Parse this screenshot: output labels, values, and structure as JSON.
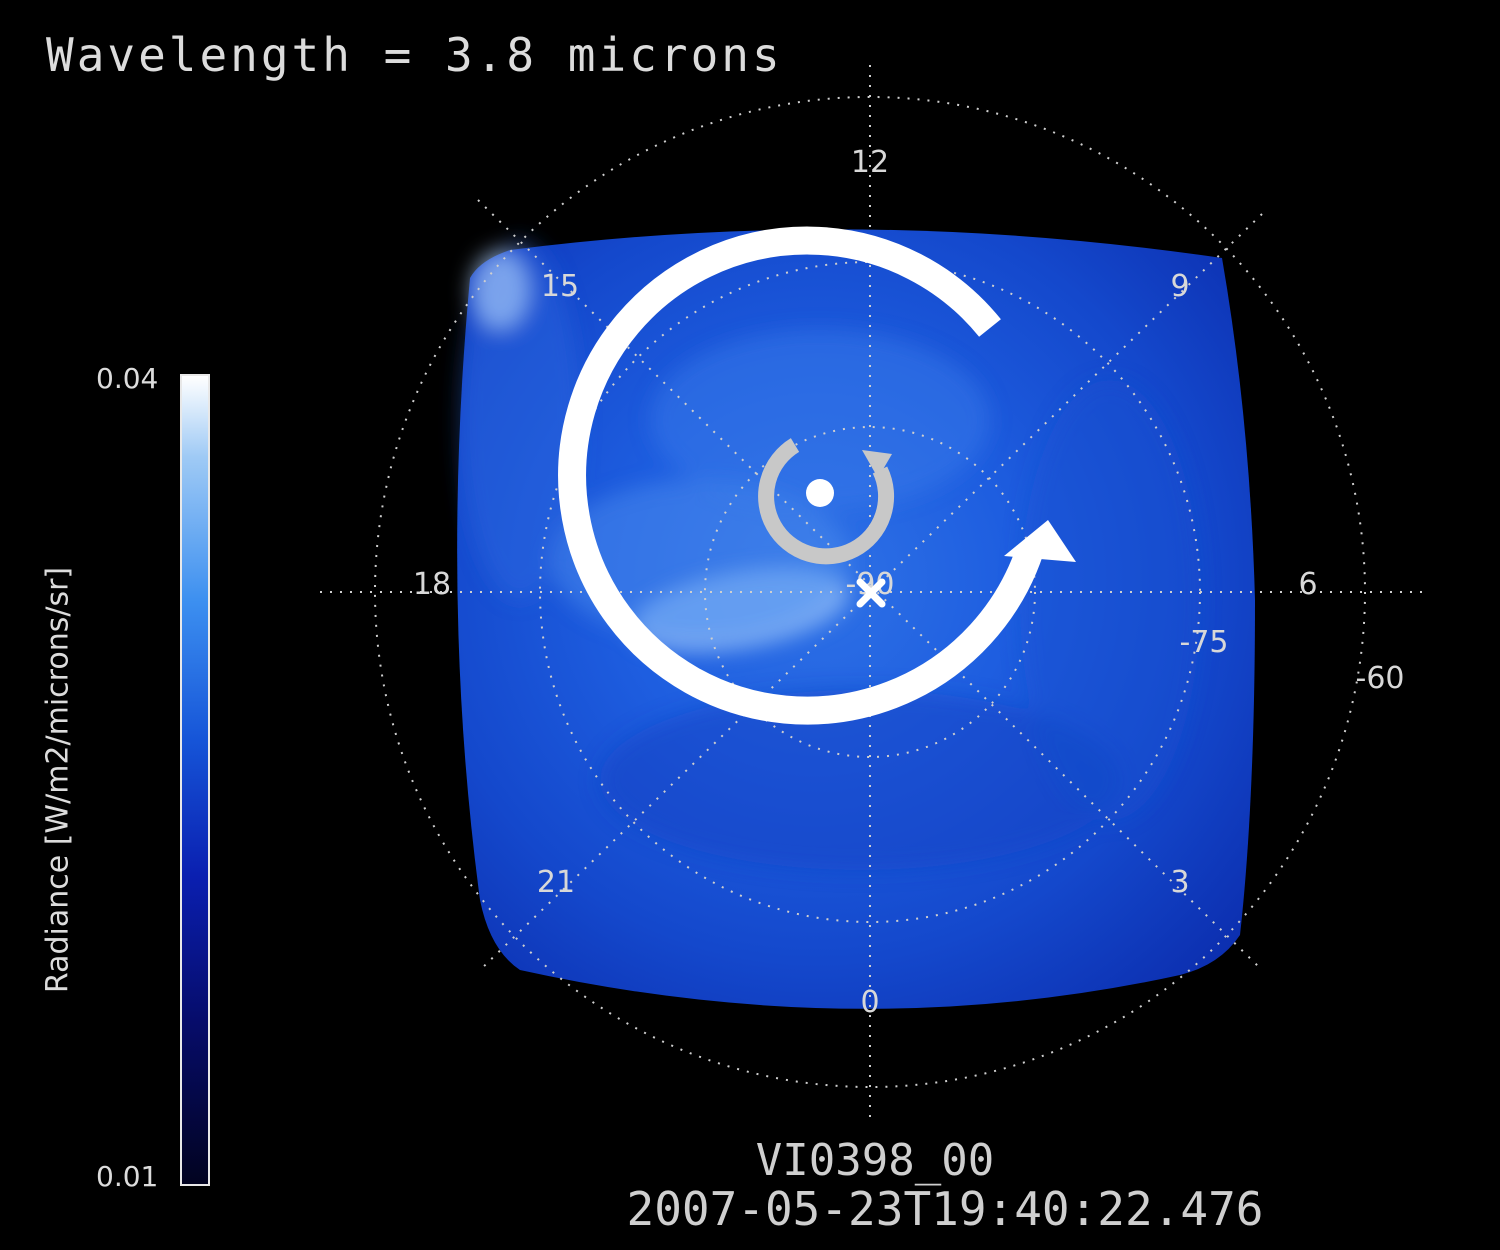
{
  "header": {
    "wavelength": "Wavelength = 3.8 microns"
  },
  "colorbar": {
    "max_label": "0.04",
    "min_label": "0.01",
    "axis_label": "Radiance [W/m2/microns/sr]"
  },
  "polar_grid": {
    "local_time_labels": [
      "12",
      "15",
      "9",
      "18",
      "6",
      "21",
      "3",
      "0"
    ],
    "latitude_labels": [
      "-90",
      "-75",
      "-60"
    ]
  },
  "footer": {
    "orbit_id": "VI0398_00",
    "timestamp": "2007-05-23T19:40:22.476"
  },
  "colors": {
    "background": "#000000",
    "cloud_deep": "#0c2fb8",
    "cloud_light": "#6aa8f5",
    "arrow": "#ffffff"
  }
}
